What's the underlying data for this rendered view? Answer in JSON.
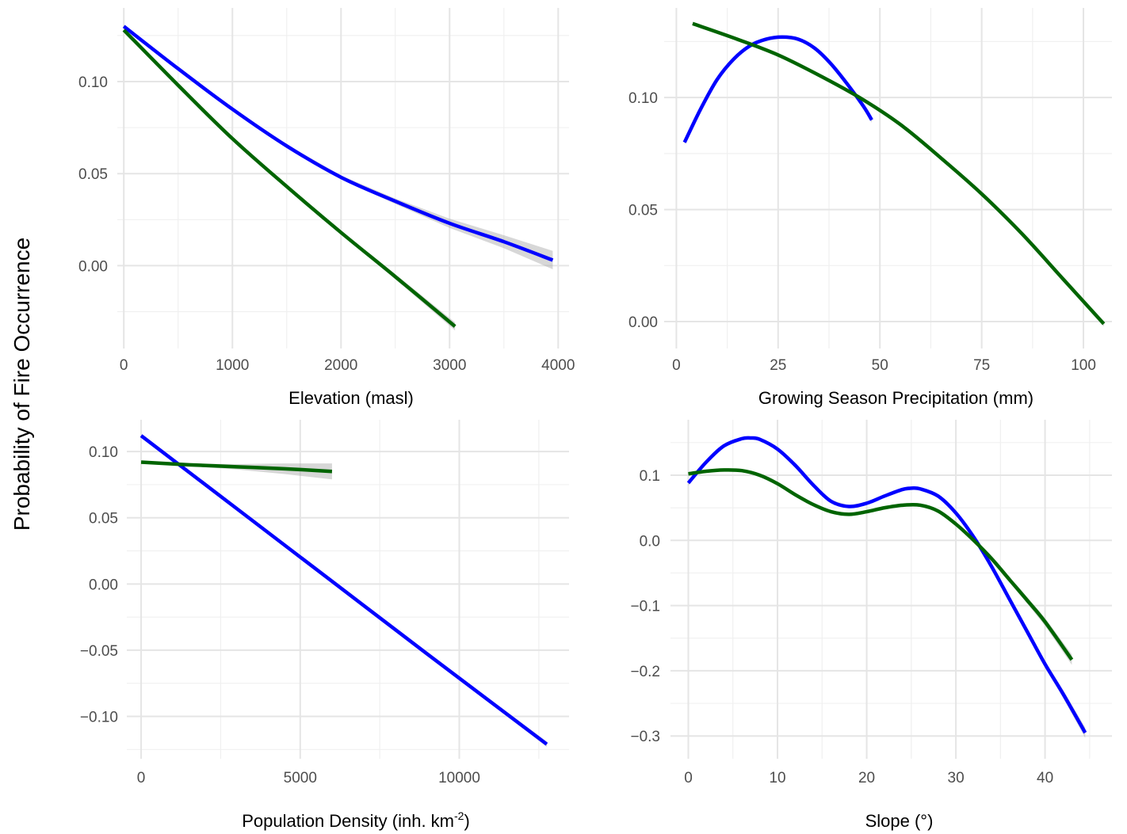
{
  "ylabel": "Probability of Fire Occurrence",
  "colors": {
    "series_a": "#0000ff",
    "series_b": "#006400",
    "band": "#a6a6a6"
  },
  "chart_data": [
    {
      "id": "elevation",
      "type": "line",
      "xlabel": "Elevation (masl)",
      "xlim": [
        -60,
        4100
      ],
      "ylim": [
        -0.045,
        0.14
      ],
      "xticks": [
        0,
        1000,
        2000,
        3000,
        4000
      ],
      "xtick_labels": [
        "0",
        "1000",
        "2000",
        "3000",
        "4000"
      ],
      "xminor": [
        500,
        1500,
        2500,
        3500
      ],
      "yticks": [
        0.0,
        0.05,
        0.1
      ],
      "ytick_labels": [
        "0.00",
        "0.05",
        "0.10"
      ],
      "yminor": [
        -0.025,
        0.025,
        0.075,
        0.125
      ],
      "series": [
        {
          "color": "#0000ff",
          "x": [
            0,
            500,
            1000,
            1500,
            2000,
            2500,
            3000,
            3500,
            3950
          ],
          "y": [
            0.13,
            0.107,
            0.085,
            0.065,
            0.048,
            0.035,
            0.023,
            0.013,
            0.003
          ],
          "se": [
            0.0008,
            0.0007,
            0.0007,
            0.0008,
            0.001,
            0.0015,
            0.0025,
            0.0035,
            0.005
          ]
        },
        {
          "color": "#006400",
          "x": [
            0,
            500,
            1000,
            1500,
            2000,
            2500,
            3050
          ],
          "y": [
            0.128,
            0.098,
            0.069,
            0.043,
            0.018,
            -0.006,
            -0.033
          ],
          "se": [
            0.0008,
            0.0007,
            0.0007,
            0.0008,
            0.001,
            0.0014,
            0.0022
          ]
        }
      ]
    },
    {
      "id": "precipitation",
      "type": "line",
      "xlabel": "Growing Season Precipitation (mm)",
      "xlim": [
        -3,
        107
      ],
      "ylim": [
        -0.012,
        0.14
      ],
      "xticks": [
        0,
        25,
        50,
        75,
        100
      ],
      "xtick_labels": [
        "0",
        "25",
        "50",
        "75",
        "100"
      ],
      "xminor": [
        12.5,
        37.5,
        62.5,
        87.5
      ],
      "yticks": [
        0.0,
        0.05,
        0.1
      ],
      "ytick_labels": [
        "0.00",
        "0.05",
        "0.10"
      ],
      "yminor": [
        0.025,
        0.075,
        0.125
      ],
      "series": [
        {
          "color": "#0000ff",
          "x": [
            2,
            6,
            10,
            14,
            18,
            22,
            26,
            30,
            34,
            38,
            42,
            46,
            48
          ],
          "y": [
            0.08,
            0.095,
            0.108,
            0.117,
            0.123,
            0.126,
            0.127,
            0.126,
            0.122,
            0.115,
            0.106,
            0.096,
            0.09
          ],
          "se": [
            0.001,
            0.0008,
            0.0007,
            0.0006,
            0.0006,
            0.0006,
            0.0006,
            0.0006,
            0.0006,
            0.0007,
            0.0008,
            0.001,
            0.0012
          ]
        },
        {
          "color": "#006400",
          "x": [
            4,
            15,
            25,
            35,
            45,
            55,
            65,
            75,
            85,
            95,
            105
          ],
          "y": [
            0.133,
            0.126,
            0.119,
            0.11,
            0.1,
            0.088,
            0.073,
            0.057,
            0.039,
            0.019,
            -0.001
          ],
          "se": [
            0.0008,
            0.0006,
            0.0005,
            0.0005,
            0.0005,
            0.0005,
            0.0006,
            0.0007,
            0.0008,
            0.001,
            0.0012
          ]
        }
      ]
    },
    {
      "id": "population",
      "type": "line",
      "xlabel": "Population Density (inh. km",
      "xlabel_sup": "-2",
      "xlabel_end": ")",
      "xlim": [
        -450,
        13450
      ],
      "ylim": [
        -0.132,
        0.124
      ],
      "xticks": [
        0,
        5000,
        10000
      ],
      "xtick_labels": [
        "0",
        "5000",
        "10000"
      ],
      "xminor": [
        2500,
        7500,
        12500
      ],
      "yticks": [
        -0.1,
        -0.05,
        0.0,
        0.05,
        0.1
      ],
      "ytick_labels": [
        "−0.10",
        "−0.05",
        "0.00",
        "0.05",
        "0.10"
      ],
      "yminor": [
        -0.125,
        -0.075,
        -0.025,
        0.025,
        0.075
      ],
      "series": [
        {
          "color": "#0000ff",
          "x": [
            0,
            3000,
            6000,
            9000,
            12750
          ],
          "y": [
            0.112,
            0.057,
            0.002,
            -0.053,
            -0.121
          ],
          "se": [
            0.0008,
            0.0007,
            0.0008,
            0.0012,
            0.002
          ]
        },
        {
          "color": "#006400",
          "x": [
            0,
            1500,
            3000,
            4500,
            6000
          ],
          "y": [
            0.092,
            0.09,
            0.0885,
            0.087,
            0.085
          ],
          "se": [
            0.0008,
            0.001,
            0.002,
            0.004,
            0.006
          ]
        }
      ]
    },
    {
      "id": "slope",
      "type": "line",
      "xlabel": "Slope (°)",
      "xlim": [
        -2,
        47.5
      ],
      "ylim": [
        -0.335,
        0.185
      ],
      "xticks": [
        0,
        10,
        20,
        30,
        40
      ],
      "xtick_labels": [
        "0",
        "10",
        "20",
        "30",
        "40"
      ],
      "xminor": [
        5,
        15,
        25,
        35,
        45
      ],
      "yticks": [
        -0.3,
        -0.2,
        -0.1,
        0.0,
        0.1
      ],
      "ytick_labels": [
        "−0.3",
        "−0.2",
        "−0.1",
        "0.0",
        "0.1"
      ],
      "yminor": [
        -0.25,
        -0.15,
        -0.05,
        0.05,
        0.15
      ],
      "series": [
        {
          "color": "#0000ff",
          "x": [
            0,
            2,
            4,
            6,
            7,
            8,
            10,
            12,
            14,
            16,
            18,
            20,
            22,
            24,
            25,
            26,
            28,
            30,
            32,
            34,
            36,
            38,
            40,
            42,
            44.5
          ],
          "y": [
            0.088,
            0.12,
            0.145,
            0.156,
            0.157,
            0.155,
            0.14,
            0.115,
            0.085,
            0.06,
            0.052,
            0.057,
            0.068,
            0.078,
            0.08,
            0.079,
            0.068,
            0.042,
            0.005,
            -0.04,
            -0.09,
            -0.14,
            -0.19,
            -0.235,
            -0.295
          ],
          "se": [
            0.004,
            0.003,
            0.002,
            0.002,
            0.002,
            0.002,
            0.002,
            0.002,
            0.002,
            0.002,
            0.002,
            0.002,
            0.002,
            0.002,
            0.002,
            0.002,
            0.002,
            0.002,
            0.002,
            0.003,
            0.003,
            0.004,
            0.005,
            0.006,
            0.008
          ]
        },
        {
          "color": "#006400",
          "x": [
            0,
            2,
            4,
            6,
            8,
            10,
            12,
            14,
            16,
            18,
            20,
            22,
            24,
            26,
            28,
            30,
            32,
            34,
            36,
            38,
            40,
            43
          ],
          "y": [
            0.102,
            0.106,
            0.108,
            0.107,
            0.1,
            0.087,
            0.07,
            0.055,
            0.044,
            0.04,
            0.044,
            0.05,
            0.054,
            0.054,
            0.045,
            0.025,
            0.0,
            -0.028,
            -0.06,
            -0.092,
            -0.125,
            -0.183
          ],
          "se": [
            0.003,
            0.002,
            0.002,
            0.002,
            0.002,
            0.002,
            0.002,
            0.002,
            0.002,
            0.002,
            0.002,
            0.002,
            0.002,
            0.002,
            0.002,
            0.002,
            0.002,
            0.003,
            0.004,
            0.005,
            0.006,
            0.008
          ]
        }
      ]
    }
  ]
}
